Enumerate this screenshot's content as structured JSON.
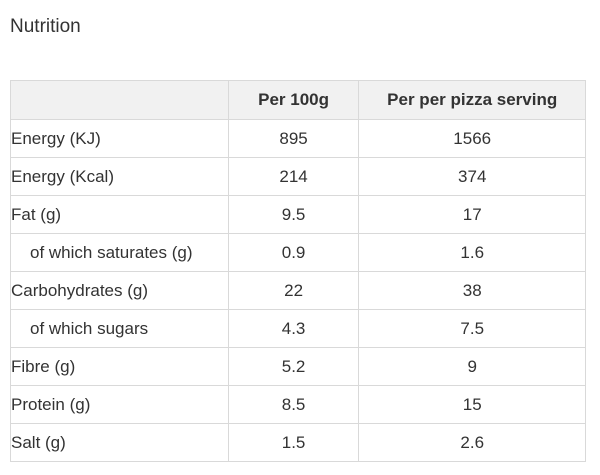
{
  "page": {
    "title": "Nutrition"
  },
  "table": {
    "headers": [
      "",
      "Per 100g",
      "Per per pizza serving"
    ],
    "rows": [
      {
        "label": "Energy (KJ)",
        "per_100g": "895",
        "per_serving": "1566",
        "indent": false
      },
      {
        "label": "Energy (Kcal)",
        "per_100g": "214",
        "per_serving": "374",
        "indent": false
      },
      {
        "label": "Fat (g)",
        "per_100g": "9.5",
        "per_serving": "17",
        "indent": false
      },
      {
        "label": "of which saturates (g)",
        "per_100g": "0.9",
        "per_serving": "1.6",
        "indent": true
      },
      {
        "label": "Carbohydrates (g)",
        "per_100g": "22",
        "per_serving": "38",
        "indent": false
      },
      {
        "label": "of which sugars",
        "per_100g": "4.3",
        "per_serving": "7.5",
        "indent": true
      },
      {
        "label": "Fibre (g)",
        "per_100g": "5.2",
        "per_serving": "9",
        "indent": false
      },
      {
        "label": "Protein (g)",
        "per_100g": "8.5",
        "per_serving": "15",
        "indent": false
      },
      {
        "label": "Salt (g)",
        "per_100g": "1.5",
        "per_serving": "2.6",
        "indent": false
      }
    ]
  },
  "colors": {
    "header_background": "#f1f1f1",
    "border": "#d9d9d9",
    "text": "#333333"
  }
}
